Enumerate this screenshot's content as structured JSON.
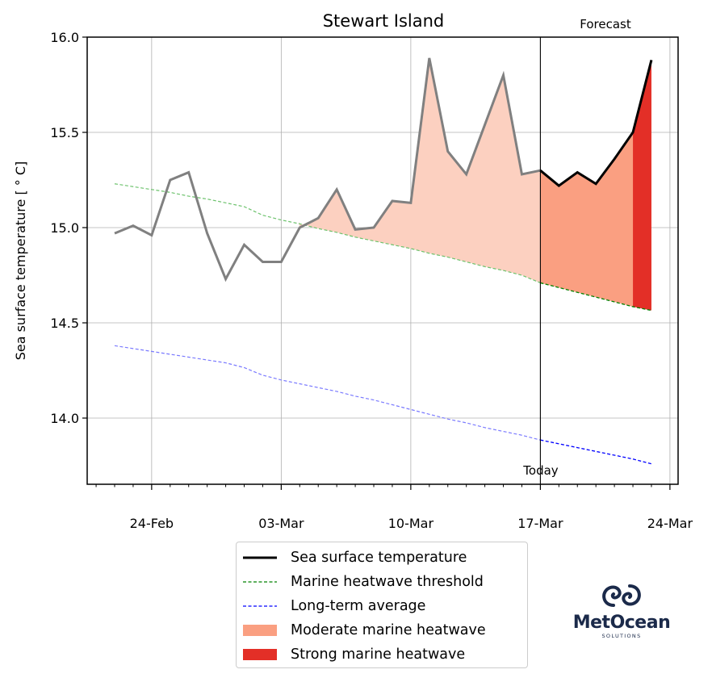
{
  "chart_data": {
    "type": "line",
    "title": "Stewart Island",
    "xlabel": "",
    "ylabel": "Sea surface temperature [$^\\circ$C]",
    "ylabel_display": "Sea surface temperature [ ° C]",
    "ylim": [
      13.65,
      16.0
    ],
    "yticks": [
      14.0,
      14.5,
      15.0,
      15.5,
      16.0
    ],
    "ytick_labels": [
      "14.0",
      "14.5",
      "15.0",
      "15.5",
      "16.0"
    ],
    "xtick_labels": [
      "24-Feb",
      "03-Mar",
      "10-Mar",
      "17-Mar",
      "24-Mar"
    ],
    "xtick_day_index": [
      2,
      9,
      16,
      23,
      30
    ],
    "xlim_day_index": [
      -1.45,
      30.2
    ],
    "grid": true,
    "legend_position": "below",
    "annotations": [
      {
        "text": "Today",
        "day_index": 23,
        "position": "bottom"
      },
      {
        "text": "Forecast",
        "position": "top-right"
      }
    ],
    "today_index": 23,
    "x": [
      "22-Feb",
      "23-Feb",
      "24-Feb",
      "25-Feb",
      "26-Feb",
      "27-Feb",
      "28-Feb",
      "01-Mar",
      "02-Mar",
      "03-Mar",
      "04-Mar",
      "05-Mar",
      "06-Mar",
      "07-Mar",
      "08-Mar",
      "09-Mar",
      "10-Mar",
      "11-Mar",
      "12-Mar",
      "13-Mar",
      "14-Mar",
      "15-Mar",
      "16-Mar",
      "17-Mar",
      "18-Mar",
      "19-Mar",
      "20-Mar",
      "21-Mar",
      "22-Mar",
      "23-Mar"
    ],
    "series": [
      {
        "name": "Sea surface temperature",
        "color_observed": "#808080",
        "color_forecast": "#000000",
        "values": [
          14.97,
          15.01,
          14.96,
          15.25,
          15.29,
          14.97,
          14.73,
          14.91,
          14.82,
          14.82,
          15.0,
          15.05,
          15.2,
          14.99,
          15.0,
          15.14,
          15.13,
          15.89,
          15.4,
          15.28,
          15.54,
          15.8,
          15.28,
          15.3,
          15.22,
          15.29,
          15.23,
          15.36,
          15.5,
          15.88
        ]
      },
      {
        "name": "Marine heatwave threshold",
        "color": "#008000",
        "values": [
          15.23,
          15.215,
          15.2,
          15.185,
          15.165,
          15.15,
          15.13,
          15.11,
          15.065,
          15.04,
          15.02,
          14.995,
          14.975,
          14.95,
          14.93,
          14.91,
          14.89,
          14.865,
          14.845,
          14.82,
          14.795,
          14.775,
          14.75,
          14.71,
          14.685,
          14.66,
          14.635,
          14.61,
          14.585,
          14.565
        ]
      },
      {
        "name": "Long-term average",
        "color": "#0000ff",
        "values": [
          14.38,
          14.365,
          14.35,
          14.335,
          14.32,
          14.305,
          14.29,
          14.265,
          14.225,
          14.2,
          14.18,
          14.16,
          14.14,
          14.115,
          14.095,
          14.07,
          14.045,
          14.02,
          13.995,
          13.975,
          13.95,
          13.93,
          13.91,
          13.885,
          13.865,
          13.845,
          13.825,
          13.805,
          13.785,
          13.76
        ]
      }
    ],
    "fills": [
      {
        "name": "Moderate marine heatwave (observed)",
        "color": "#fcd0c0",
        "from_index": 10,
        "to_index": 23
      },
      {
        "name": "Moderate marine heatwave",
        "color": "#fa9f81",
        "from_index": 23,
        "to_index": 28
      },
      {
        "name": "Strong marine heatwave",
        "color": "#e32f27",
        "from_index": 28,
        "to_index": 29
      }
    ]
  },
  "legend": {
    "items": [
      {
        "label": "Sea surface temperature",
        "kind": "line",
        "color": "#000000"
      },
      {
        "label": "Marine heatwave threshold",
        "kind": "dash",
        "color": "#008000"
      },
      {
        "label": "Long-term average",
        "kind": "dash",
        "color": "#0000ff"
      },
      {
        "label": "Moderate marine heatwave",
        "kind": "patch",
        "color": "#fa9f81"
      },
      {
        "label": "Strong marine heatwave",
        "kind": "patch",
        "color": "#e32f27"
      }
    ]
  },
  "logo": {
    "icon": "swirl-logo-icon",
    "name": "MetOcean",
    "subtitle": "SOLUTIONS",
    "color": "#1b2a4a"
  }
}
